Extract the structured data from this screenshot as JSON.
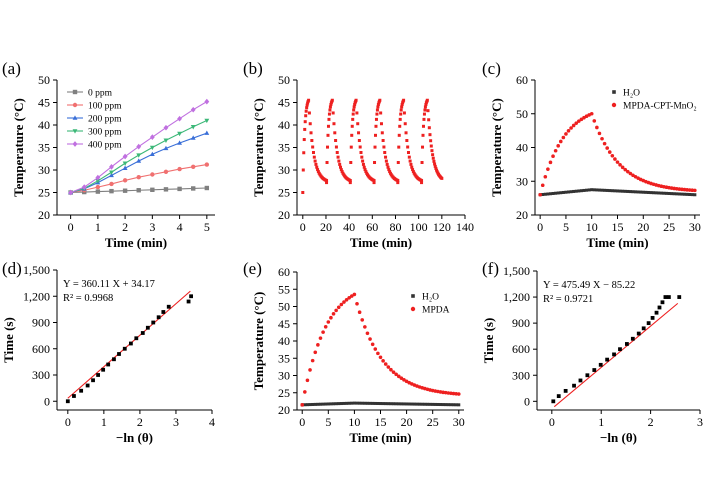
{
  "chart_data": [
    {
      "panel": "(a)",
      "type": "line",
      "xlabel": "Time (min)",
      "ylabel": "Temperature (°C)",
      "xlim": [
        -0.5,
        5.3
      ],
      "ylim": [
        20,
        50
      ],
      "xticks": [
        0,
        1,
        2,
        3,
        4,
        5
      ],
      "yticks": [
        20,
        25,
        30,
        35,
        40,
        45,
        50
      ],
      "legend": "top-left",
      "x": [
        0,
        0.5,
        1,
        1.5,
        2,
        2.5,
        3,
        3.5,
        4,
        4.5,
        5
      ],
      "series": [
        {
          "name": "0 ppm",
          "color": "#808080",
          "marker": "square",
          "values": [
            25.0,
            25.1,
            25.2,
            25.3,
            25.4,
            25.5,
            25.6,
            25.7,
            25.8,
            25.9,
            26.0
          ]
        },
        {
          "name": "100 ppm",
          "color": "#f07070",
          "marker": "circle",
          "values": [
            25.0,
            25.5,
            26.2,
            26.9,
            27.7,
            28.4,
            29.0,
            29.6,
            30.2,
            30.7,
            31.2
          ]
        },
        {
          "name": "200 ppm",
          "color": "#3a6fd8",
          "marker": "triangle",
          "values": [
            25.0,
            25.8,
            27.2,
            28.8,
            30.4,
            32.0,
            33.5,
            34.8,
            36.0,
            37.1,
            38.2
          ]
        },
        {
          "name": "300 ppm",
          "color": "#3cb878",
          "marker": "triangle-down",
          "values": [
            25.0,
            25.9,
            27.6,
            29.5,
            31.5,
            33.3,
            35.0,
            36.6,
            38.1,
            39.6,
            41.0
          ]
        },
        {
          "name": "400 ppm",
          "color": "#c070e0",
          "marker": "diamond",
          "values": [
            25.0,
            26.2,
            28.3,
            30.7,
            33.0,
            35.2,
            37.3,
            39.4,
            41.4,
            43.4,
            45.2
          ]
        }
      ]
    },
    {
      "panel": "(b)",
      "type": "scatter",
      "xlabel": "Time (min)",
      "ylabel": "Temperature (°C)",
      "xlim": [
        -5,
        140
      ],
      "ylim": [
        20,
        50
      ],
      "xticks": [
        0,
        20,
        40,
        60,
        80,
        100,
        120,
        140
      ],
      "yticks": [
        20,
        25,
        30,
        35,
        40,
        45,
        50
      ],
      "color": "#ee2020",
      "cycles": 6,
      "cycle_period_min": 20.5,
      "heating_min": 5,
      "peak_c": 45.5,
      "trough_c": 27.2,
      "start_c": 25
    },
    {
      "panel": "(c)",
      "type": "scatter",
      "xlabel": "Time (min)",
      "ylabel": "Temperature (°C)",
      "xlim": [
        -1,
        31
      ],
      "ylim": [
        20,
        60
      ],
      "xticks": [
        0,
        5,
        10,
        15,
        20,
        25,
        30
      ],
      "yticks": [
        20,
        30,
        40,
        50,
        60
      ],
      "legend": "top-right",
      "series": [
        {
          "name": "H₂O",
          "color": "#333333",
          "marker": "square",
          "kind": "flat",
          "peak": 27.5,
          "base": 26.0
        },
        {
          "name": "MPDA-CPT-MnO₂",
          "color": "#ee2020",
          "marker": "circle",
          "kind": "heat",
          "start": 26.0,
          "peak": 50.0,
          "end": 26.8
        }
      ]
    },
    {
      "panel": "(d)",
      "type": "scatter",
      "xlabel": "−ln (θ)",
      "ylabel": "Time (s)",
      "xlim": [
        -0.3,
        4
      ],
      "ylim": [
        -100,
        1500
      ],
      "xticks": [
        0,
        1,
        2,
        3,
        4
      ],
      "yticks": [
        0,
        300,
        600,
        900,
        1200,
        1500
      ],
      "ytick_labels": [
        "0",
        "300",
        "600",
        "900",
        "1,200",
        "1,500"
      ],
      "equation": "Y = 360.11 X + 34.17",
      "r2": "R² = 0.9968",
      "fit": {
        "slope": 360.11,
        "intercept": 34.17,
        "x_range": [
          0,
          3.4
        ],
        "color": "#ee2020"
      },
      "points_x": [
        0,
        0.17,
        0.37,
        0.55,
        0.7,
        0.84,
        0.98,
        1.12,
        1.28,
        1.42,
        1.58,
        1.75,
        1.9,
        2.08,
        2.22,
        2.37,
        2.52,
        2.65,
        2.8,
        3.35,
        3.42
      ],
      "points_y": [
        0,
        60,
        120,
        180,
        240,
        300,
        360,
        420,
        480,
        540,
        600,
        660,
        720,
        780,
        840,
        900,
        960,
        1020,
        1080,
        1140,
        1200
      ]
    },
    {
      "panel": "(e)",
      "type": "scatter",
      "xlabel": "Time (min)",
      "ylabel": "Temperature (°C)",
      "xlim": [
        -1,
        31
      ],
      "ylim": [
        20,
        60
      ],
      "xticks": [
        0,
        5,
        10,
        15,
        20,
        25,
        30
      ],
      "yticks": [
        20,
        25,
        30,
        35,
        40,
        45,
        50,
        55,
        60
      ],
      "legend": "top-right",
      "series": [
        {
          "name": "H₂O",
          "color": "#333333",
          "marker": "square",
          "kind": "flat",
          "peak": 22.0,
          "base": 21.5
        },
        {
          "name": "MPDA",
          "color": "#ee2020",
          "marker": "circle",
          "kind": "heat",
          "start": 21.5,
          "peak": 53.5,
          "end": 24.0
        }
      ]
    },
    {
      "panel": "(f)",
      "type": "scatter",
      "xlabel": "−ln (θ)",
      "ylabel": "Time (s)",
      "xlim": [
        -0.3,
        3
      ],
      "ylim": [
        -100,
        1500
      ],
      "xticks": [
        0,
        1,
        2,
        3
      ],
      "yticks": [
        0,
        300,
        600,
        900,
        1200,
        1500
      ],
      "ytick_labels": [
        "0",
        "300",
        "600",
        "900",
        "1,200",
        "1,500"
      ],
      "equation": "Y = 475.49 X − 85.22",
      "r2": "R² = 0.9721",
      "fit": {
        "slope": 475.49,
        "intercept": -85.22,
        "x_range": [
          0.05,
          2.55
        ],
        "color": "#ee2020"
      },
      "points_x": [
        0.03,
        0.14,
        0.28,
        0.45,
        0.58,
        0.72,
        0.86,
        0.99,
        1.12,
        1.26,
        1.38,
        1.52,
        1.64,
        1.76,
        1.86,
        1.96,
        2.04,
        2.12,
        2.18,
        2.24,
        2.3,
        2.37,
        2.58
      ],
      "points_y": [
        0,
        60,
        120,
        180,
        240,
        300,
        360,
        420,
        480,
        540,
        600,
        660,
        720,
        780,
        840,
        900,
        960,
        1020,
        1080,
        1140,
        1200,
        1200,
        1200
      ]
    }
  ]
}
